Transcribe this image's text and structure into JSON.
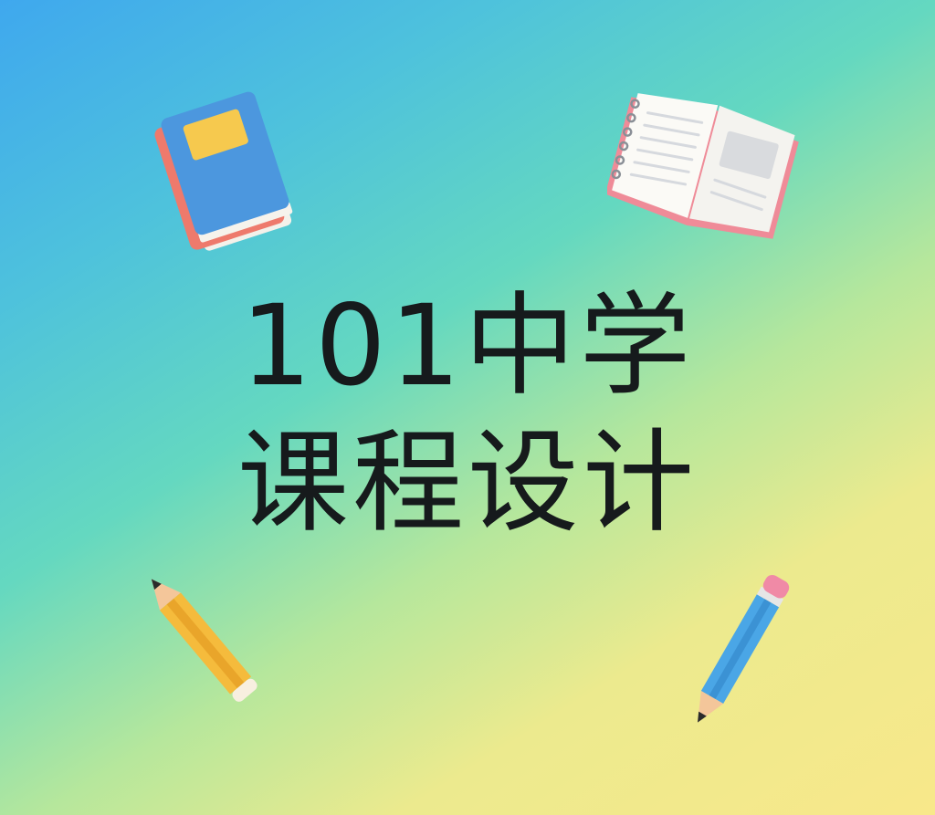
{
  "title": {
    "line1": "101中学",
    "line2": "课程设计"
  },
  "decorations": {
    "top_left": "closed-book-icon",
    "top_right": "open-book-icon",
    "bottom_left": "yellow-pencil-icon",
    "bottom_right": "blue-pencil-icon"
  },
  "colors": {
    "gradient_start": "#3fa8ee",
    "gradient_mid": "#64d8c0",
    "gradient_end": "#f8e88a",
    "title_text": "#161a1c",
    "book_cover": "#4c97de",
    "book_spine": "#ee7a6c",
    "pencil_yellow": "#f5bb3c",
    "pencil_blue": "#4aa6e6",
    "eraser_pink": "#f08aa6"
  }
}
